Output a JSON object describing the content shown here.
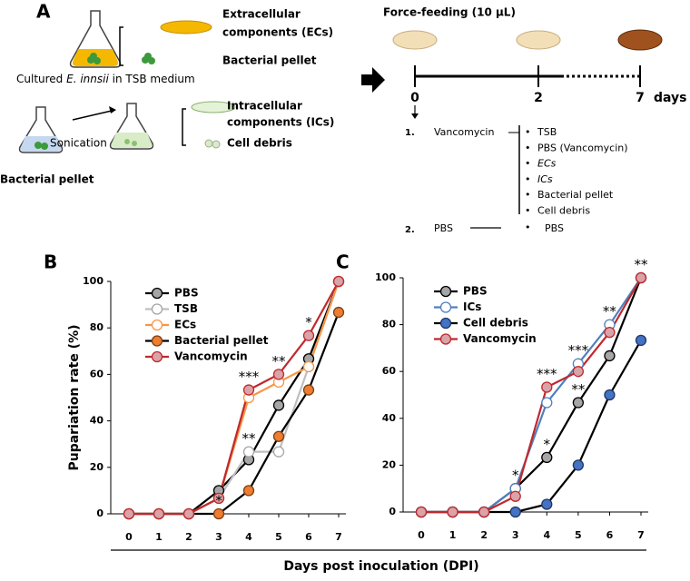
{
  "panel_a": {
    "label": "A",
    "ecs": [
      "Extracellular",
      "components (ECs)"
    ],
    "pellet_top": "Bacterial pellet",
    "cultured": [
      "Cultured ",
      "E. innsii",
      " in TSB medium"
    ],
    "sonication": "Sonication",
    "ics": [
      "Intracellular",
      "components (ICs)"
    ],
    "debris": "Cell debris",
    "pellet_bottom": "Bacterial pellet",
    "force_feeding": "Force-feeding (10 μL)",
    "timeline": [
      "0",
      "2",
      "7",
      "days"
    ],
    "group1": {
      "number": "1.",
      "name": "Vancomycin",
      "items": [
        "TSB",
        "PBS (Vancomycin)",
        "ECs",
        "ICs",
        "Bacterial pellet",
        "Cell debris"
      ]
    },
    "group2": {
      "number": "2.",
      "name": "PBS",
      "items": [
        "PBS"
      ]
    }
  },
  "figure": {
    "xlabel": "Days post inoculation (DPI)"
  },
  "chart_data": [
    {
      "type": "line",
      "panel": "B",
      "ylabel": "Pupariation rate (%)",
      "x": [
        0,
        1,
        2,
        3,
        4,
        5,
        6,
        7
      ],
      "xlim": [
        0,
        7
      ],
      "xticks": [
        0,
        1,
        2,
        3,
        4,
        5,
        6,
        7
      ],
      "ylim": [
        0,
        100
      ],
      "yticks": [
        0,
        20,
        40,
        60,
        80,
        100
      ],
      "legend": "upper left",
      "series": [
        {
          "name": "PBS",
          "color": "#000000",
          "marker_fill": "#a6a6a6",
          "marker_stroke": "#000000",
          "values": [
            0,
            0,
            0,
            10,
            23.3,
            46.7,
            66.7,
            100
          ]
        },
        {
          "name": "TSB",
          "color": "#bfbfbf",
          "marker_fill": "#ffffff",
          "marker_stroke": "#a6a6a6",
          "values": [
            0,
            0,
            0,
            6.7,
            26.7,
            26.7,
            63.3,
            100
          ]
        },
        {
          "name": "ECs",
          "color": "#f79646",
          "marker_fill": "#ffffff",
          "marker_stroke": "#f79646",
          "values": [
            0,
            0,
            0,
            6.7,
            50,
            56.7,
            63.3,
            100
          ]
        },
        {
          "name": "Bacterial pellet",
          "color": "#000000",
          "marker_fill": "#ed7d31",
          "marker_stroke": "#7f3f10",
          "values": [
            0,
            0,
            0,
            0,
            10,
            33.3,
            53.3,
            86.7
          ]
        },
        {
          "name": "Vancomycin",
          "color": "#c0282d",
          "marker_fill": "#d9a3a8",
          "marker_stroke": "#c0282d",
          "values": [
            0,
            0,
            0,
            6.7,
            53.3,
            60,
            76.7,
            100
          ]
        }
      ],
      "annotations": [
        {
          "text": "*",
          "x": 3,
          "y": 0
        },
        {
          "text": "**",
          "x": 4,
          "y": 26.7
        },
        {
          "text": "***",
          "x": 4,
          "y": 53.3
        },
        {
          "text": "**",
          "x": 5,
          "y": 60
        },
        {
          "text": "*",
          "x": 6,
          "y": 76.7
        }
      ]
    },
    {
      "type": "line",
      "panel": "C",
      "x": [
        0,
        1,
        2,
        3,
        4,
        5,
        6,
        7
      ],
      "xlim": [
        0,
        7
      ],
      "xticks": [
        0,
        1,
        2,
        3,
        4,
        5,
        6,
        7
      ],
      "ylim": [
        0,
        100
      ],
      "yticks": [
        0,
        20,
        40,
        60,
        80,
        100
      ],
      "legend": "upper left",
      "series": [
        {
          "name": "PBS",
          "color": "#000000",
          "marker_fill": "#a6a6a6",
          "marker_stroke": "#000000",
          "values": [
            0,
            0,
            0,
            10,
            23.3,
            46.7,
            66.7,
            100
          ]
        },
        {
          "name": "ICs",
          "color": "#4f81bd",
          "marker_fill": "#ffffff",
          "marker_stroke": "#4f81bd",
          "values": [
            0,
            0,
            0,
            10,
            46.7,
            63.3,
            80,
            100
          ]
        },
        {
          "name": "Cell debris",
          "color": "#000000",
          "marker_fill": "#4472c4",
          "marker_stroke": "#1f3864",
          "values": [
            0,
            0,
            0,
            0,
            3.3,
            20,
            50,
            73.3
          ]
        },
        {
          "name": "Vancomycin",
          "color": "#c0282d",
          "marker_fill": "#d9a3a8",
          "marker_stroke": "#c0282d",
          "values": [
            0,
            0,
            0,
            6.7,
            53.3,
            60,
            76.7,
            100
          ]
        }
      ],
      "annotations": [
        {
          "text": "*",
          "x": 3,
          "y": 10
        },
        {
          "text": "*",
          "x": 4,
          "y": 23.3
        },
        {
          "text": "***",
          "x": 4,
          "y": 53.3
        },
        {
          "text": "**",
          "x": 5,
          "y": 46.7
        },
        {
          "text": "***",
          "x": 5,
          "y": 63.3
        },
        {
          "text": "**",
          "x": 6,
          "y": 80
        },
        {
          "text": "**",
          "x": 7,
          "y": 100
        }
      ]
    }
  ]
}
